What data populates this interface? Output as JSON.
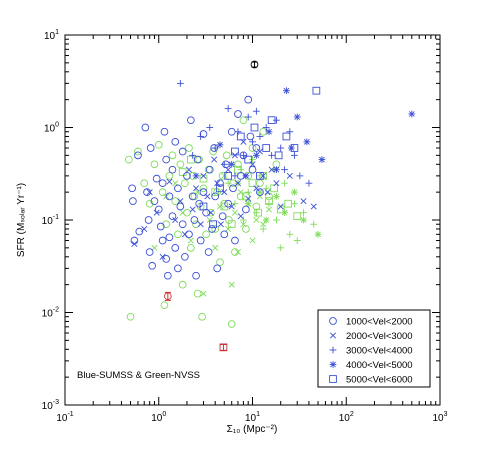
{
  "chart_data": {
    "type": "scatter",
    "xscale": "log",
    "yscale": "log",
    "xlim": [
      0.1,
      1000
    ],
    "ylim": [
      0.001,
      10
    ],
    "xlabel": "Σ₁₀ (Mpc⁻²)",
    "ylabel": "SFR (Mₛₒₗₐᵣ Yr⁻¹)",
    "xtick_labels": [
      {
        "value": 0.1,
        "base": "10",
        "exp": "-1"
      },
      {
        "value": 1,
        "base": "10",
        "exp": "0"
      },
      {
        "value": 10,
        "base": "10",
        "exp": "1"
      },
      {
        "value": 100,
        "base": "10",
        "exp": "2"
      },
      {
        "value": 1000,
        "base": "10",
        "exp": "3"
      }
    ],
    "ytick_labels": [
      {
        "value": 0.001,
        "base": "10",
        "exp": "-3"
      },
      {
        "value": 0.01,
        "base": "10",
        "exp": "-2"
      },
      {
        "value": 0.1,
        "base": "10",
        "exp": "-1"
      },
      {
        "value": 1,
        "base": "10",
        "exp": "0"
      },
      {
        "value": 10,
        "base": "10",
        "exp": "1"
      }
    ],
    "note": "Blue-SUMSS & Green-NVSS",
    "legend": {
      "position": "bottom-right",
      "entries": [
        {
          "marker": "circle",
          "label": "1000<Vel<2000"
        },
        {
          "marker": "x",
          "label": "2000<Vel<3000"
        },
        {
          "marker": "plus",
          "label": "3000<Vel<4000"
        },
        {
          "marker": "star",
          "label": "4000<Vel<5000"
        },
        {
          "marker": "square",
          "label": "5000<Vel<6000"
        }
      ]
    },
    "colors": {
      "SUMSS": "#3b4fd6",
      "NVSS": "#7fdc5a",
      "error_red": "#cc3333",
      "error_black": "#000000"
    },
    "series": [
      {
        "survey": "SUMSS",
        "marker": "circle",
        "points": [
          [
            0.52,
            0.22
          ],
          [
            0.53,
            0.16
          ],
          [
            0.55,
            0.06
          ],
          [
            0.6,
            0.5
          ],
          [
            0.62,
            0.075
          ],
          [
            0.72,
            1.0
          ],
          [
            0.75,
            0.2
          ],
          [
            0.78,
            0.1
          ],
          [
            0.8,
            0.045
          ],
          [
            0.82,
            0.6
          ],
          [
            0.85,
            0.032
          ],
          [
            0.9,
            0.16
          ],
          [
            0.95,
            0.28
          ],
          [
            1.0,
            0.13
          ],
          [
            1.05,
            0.085
          ],
          [
            1.1,
            0.06
          ],
          [
            1.1,
            0.25
          ],
          [
            1.15,
            0.9
          ],
          [
            1.2,
            0.45
          ],
          [
            1.2,
            0.038
          ],
          [
            1.25,
            0.025
          ],
          [
            1.3,
            0.065
          ],
          [
            1.3,
            0.18
          ],
          [
            1.4,
            0.11
          ],
          [
            1.4,
            0.35
          ],
          [
            1.5,
            0.7
          ],
          [
            1.5,
            0.05
          ],
          [
            1.6,
            0.22
          ],
          [
            1.6,
            0.03
          ],
          [
            1.7,
            0.14
          ],
          [
            1.8,
            0.09
          ],
          [
            1.8,
            0.55
          ],
          [
            1.9,
            0.04
          ],
          [
            2.0,
            0.3
          ],
          [
            2.1,
            0.07
          ],
          [
            2.2,
            1.2
          ],
          [
            2.3,
            0.18
          ],
          [
            2.4,
            0.1
          ],
          [
            2.5,
            0.025
          ],
          [
            2.6,
            0.45
          ],
          [
            2.7,
            0.15
          ],
          [
            2.8,
            0.06
          ],
          [
            3.0,
            0.85
          ],
          [
            3.0,
            0.2
          ],
          [
            3.2,
            0.12
          ],
          [
            3.4,
            0.045
          ],
          [
            3.5,
            0.35
          ],
          [
            3.7,
            0.08
          ],
          [
            3.9,
            0.6
          ],
          [
            4.0,
            0.18
          ],
          [
            4.2,
            0.03
          ],
          [
            4.5,
            0.25
          ],
          [
            4.8,
            0.11
          ],
          [
            5.0,
            0.07
          ],
          [
            5.2,
            0.4
          ],
          [
            5.5,
            0.15
          ],
          [
            6.0,
            0.9
          ],
          [
            6.2,
            0.22
          ],
          [
            6.5,
            0.06
          ],
          [
            7.0,
            1.4
          ],
          [
            7.5,
            0.3
          ],
          [
            8.0,
            0.5
          ],
          [
            8.5,
            0.13
          ],
          [
            9.0,
            2.0
          ],
          [
            9.5,
            0.8
          ],
          [
            10.0,
            0.35
          ],
          [
            11.0,
            0.6
          ],
          [
            12.0,
            0.2
          ]
        ]
      },
      {
        "survey": "NVSS",
        "marker": "circle",
        "points": [
          [
            0.48,
            0.45
          ],
          [
            0.5,
            0.009
          ],
          [
            0.6,
            0.55
          ],
          [
            0.7,
            0.25
          ],
          [
            0.8,
            0.15
          ],
          [
            0.9,
            0.4
          ],
          [
            1.0,
            0.65
          ],
          [
            1.1,
            0.2
          ],
          [
            1.15,
            0.012
          ],
          [
            1.2,
            0.09
          ],
          [
            1.3,
            0.3
          ],
          [
            1.4,
            0.5
          ],
          [
            1.5,
            0.16
          ],
          [
            1.6,
            0.07
          ],
          [
            1.7,
            0.4
          ],
          [
            1.8,
            0.02
          ],
          [
            1.9,
            0.25
          ],
          [
            2.0,
            0.12
          ],
          [
            2.1,
            0.6
          ],
          [
            2.2,
            0.05
          ],
          [
            2.3,
            0.3
          ],
          [
            2.4,
            0.18
          ],
          [
            2.5,
            0.09
          ],
          [
            2.6,
            0.016
          ],
          [
            2.7,
            0.45
          ],
          [
            2.8,
            0.14
          ],
          [
            2.9,
            0.009
          ],
          [
            3.0,
            0.22
          ],
          [
            3.2,
            0.07
          ],
          [
            3.4,
            0.35
          ],
          [
            3.6,
            0.12
          ],
          [
            3.8,
            0.55
          ],
          [
            4.0,
            0.08
          ],
          [
            4.2,
            0.2
          ],
          [
            4.5,
            0.035
          ],
          [
            4.8,
            0.3
          ],
          [
            5.0,
            0.15
          ],
          [
            5.3,
            0.5
          ],
          [
            5.6,
            0.1
          ],
          [
            6.0,
            0.0075
          ],
          [
            6.2,
            0.25
          ],
          [
            6.5,
            0.045
          ],
          [
            7.0,
            0.4
          ],
          [
            7.5,
            0.18
          ],
          [
            8.0,
            1.2
          ],
          [
            8.5,
            0.08
          ],
          [
            9.0,
            0.3
          ],
          [
            10.0,
            0.6
          ],
          [
            11.0,
            0.14
          ],
          [
            12.0,
            0.25
          ],
          [
            13.0,
            0.9
          ],
          [
            15.0,
            0.18
          ],
          [
            18.0,
            0.4
          ]
        ]
      },
      {
        "survey": "SUMSS",
        "marker": "x",
        "points": [
          [
            0.55,
            0.055
          ],
          [
            0.7,
            0.08
          ],
          [
            0.8,
            0.2
          ],
          [
            0.95,
            0.12
          ],
          [
            1.1,
            0.04
          ],
          [
            1.3,
            0.26
          ],
          [
            1.5,
            0.1
          ],
          [
            1.7,
            0.16
          ],
          [
            1.9,
            0.07
          ],
          [
            2.1,
            0.35
          ],
          [
            2.3,
            0.13
          ],
          [
            2.5,
            0.22
          ],
          [
            2.8,
            0.09
          ],
          [
            3.0,
            0.3
          ],
          [
            3.3,
            0.18
          ],
          [
            3.6,
            0.12
          ],
          [
            3.9,
            0.45
          ],
          [
            4.2,
            0.25
          ],
          [
            4.6,
            0.09
          ],
          [
            5.0,
            0.2
          ],
          [
            5.5,
            0.35
          ],
          [
            6.0,
            0.14
          ],
          [
            6.5,
            0.5
          ],
          [
            7.0,
            0.25
          ],
          [
            7.5,
            0.11
          ],
          [
            8.0,
            0.7
          ],
          [
            8.5,
            0.3
          ],
          [
            9.0,
            0.17
          ],
          [
            10.0,
            0.4
          ],
          [
            11.0,
            0.22
          ],
          [
            12.0,
            0.55
          ],
          [
            13.0,
            0.3
          ],
          [
            14.5,
            0.2
          ],
          [
            16.0,
            0.35
          ],
          [
            18.0,
            0.25
          ],
          [
            20.0,
            0.14
          ],
          [
            25.0,
            0.3
          ],
          [
            35.0,
            0.16
          ],
          [
            45.0,
            0.14
          ]
        ]
      },
      {
        "survey": "NVSS",
        "marker": "x",
        "points": [
          [
            0.9,
            0.05
          ],
          [
            1.2,
            0.18
          ],
          [
            1.5,
            0.25
          ],
          [
            1.8,
            0.12
          ],
          [
            2.2,
            0.06
          ],
          [
            2.6,
            0.2
          ],
          [
            3.0,
            0.016
          ],
          [
            3.5,
            0.1
          ],
          [
            4.0,
            0.05
          ],
          [
            4.5,
            0.14
          ],
          [
            5.0,
            0.3
          ],
          [
            5.5,
            0.08
          ],
          [
            6.0,
            0.02
          ],
          [
            6.5,
            0.12
          ],
          [
            7.0,
            0.045
          ],
          [
            7.5,
            0.2
          ],
          [
            8.0,
            0.09
          ],
          [
            9.0,
            0.15
          ],
          [
            10.0,
            0.06
          ],
          [
            11.0,
            0.1
          ],
          [
            12.0,
            0.18
          ],
          [
            13.0,
            0.09
          ],
          [
            15.0,
            0.13
          ]
        ]
      },
      {
        "survey": "SUMSS",
        "marker": "plus",
        "points": [
          [
            1.7,
            3.0
          ],
          [
            2.3,
            0.5
          ],
          [
            2.8,
            0.8
          ],
          [
            3.5,
            1.0
          ],
          [
            4.0,
            0.6
          ],
          [
            5.0,
            0.4
          ],
          [
            5.5,
            1.6
          ],
          [
            6.5,
            0.3
          ],
          [
            7.0,
            0.9
          ],
          [
            8.0,
            0.5
          ],
          [
            9.0,
            1.3
          ],
          [
            10.0,
            0.7
          ],
          [
            11.0,
            1.5
          ],
          [
            12.0,
            0.8
          ],
          [
            14.0,
            1.0
          ],
          [
            16.0,
            0.5
          ],
          [
            18.0,
            1.2
          ],
          [
            20.0,
            0.6
          ],
          [
            22.0,
            0.35
          ],
          [
            25.0,
            0.9
          ],
          [
            28.0,
            0.5
          ],
          [
            32.0,
            0.3
          ],
          [
            40.0,
            0.25
          ]
        ]
      },
      {
        "survey": "NVSS",
        "marker": "plus",
        "points": [
          [
            5.5,
            0.25
          ],
          [
            6.5,
            0.15
          ],
          [
            7.5,
            0.35
          ],
          [
            8.0,
            0.1
          ],
          [
            9.0,
            0.2
          ],
          [
            10.0,
            0.45
          ],
          [
            11.0,
            0.12
          ],
          [
            12.0,
            0.3
          ],
          [
            13.0,
            0.08
          ],
          [
            14.0,
            0.22
          ],
          [
            15.0,
            0.15
          ],
          [
            17.0,
            0.35
          ],
          [
            18.0,
            0.1
          ],
          [
            20.0,
            0.05
          ],
          [
            22.0,
            0.25
          ],
          [
            25.0,
            0.07
          ],
          [
            28.0,
            0.15
          ],
          [
            30.0,
            0.06
          ],
          [
            35.0,
            0.12
          ],
          [
            45.0,
            0.09
          ]
        ]
      },
      {
        "survey": "SUMSS",
        "marker": "star",
        "points": [
          [
            2.5,
            0.3
          ],
          [
            4.5,
            0.65
          ],
          [
            6.0,
            0.4
          ],
          [
            8.5,
            0.3
          ],
          [
            11.0,
            0.5
          ],
          [
            15.0,
            0.9
          ],
          [
            18.0,
            0.35
          ],
          [
            23.0,
            2.5
          ],
          [
            26.0,
            0.6
          ],
          [
            30.0,
            1.3
          ],
          [
            38.0,
            0.7
          ],
          [
            55.0,
            0.45
          ],
          [
            500.0,
            1.4
          ]
        ]
      },
      {
        "survey": "NVSS",
        "marker": "star",
        "points": [
          [
            7.0,
            0.25
          ],
          [
            9.0,
            0.15
          ],
          [
            12.0,
            0.2
          ],
          [
            14.0,
            0.1
          ],
          [
            18.0,
            0.18
          ],
          [
            22.0,
            0.12
          ],
          [
            28.0,
            0.2
          ],
          [
            35.0,
            0.1
          ],
          [
            50.0,
            0.07
          ]
        ]
      },
      {
        "survey": "SUMSS",
        "marker": "square",
        "points": [
          [
            3.0,
            0.14
          ],
          [
            3.8,
            0.09
          ],
          [
            4.5,
            0.22
          ],
          [
            5.5,
            0.3
          ],
          [
            6.5,
            0.55
          ],
          [
            7.5,
            0.8
          ],
          [
            9.0,
            0.45
          ],
          [
            10.5,
            1.0
          ],
          [
            12.0,
            0.3
          ],
          [
            14.0,
            0.6
          ],
          [
            16.0,
            1.2
          ],
          [
            19.0,
            0.5
          ],
          [
            23.0,
            0.8
          ],
          [
            28.0,
            0.6
          ],
          [
            48.0,
            2.5
          ]
        ]
      },
      {
        "survey": "NVSS",
        "marker": "square",
        "points": [
          [
            1.8,
            0.33
          ],
          [
            2.2,
            0.45
          ],
          [
            3.0,
            0.28
          ],
          [
            4.0,
            0.2
          ],
          [
            5.0,
            0.14
          ],
          [
            6.0,
            0.09
          ],
          [
            7.0,
            0.35
          ],
          [
            8.5,
            0.18
          ],
          [
            10.0,
            0.25
          ],
          [
            11.5,
            0.12
          ],
          [
            13.0,
            0.3
          ],
          [
            15.0,
            0.16
          ],
          [
            17.0,
            0.22
          ],
          [
            20.0,
            0.13
          ],
          [
            24.0,
            0.15
          ],
          [
            30.0,
            0.11
          ]
        ]
      }
    ],
    "error_points": [
      {
        "x": 1.25,
        "y": 0.015,
        "yerr_low": 0.0135,
        "yerr_high": 0.0165,
        "color": "error_red",
        "marker": "circle"
      },
      {
        "x": 4.9,
        "y": 0.0042,
        "yerr_low": 0.0039,
        "yerr_high": 0.0045,
        "color": "error_red",
        "marker": "square"
      },
      {
        "x": 10.5,
        "y": 4.8,
        "yerr_low": 4.5,
        "yerr_high": 5.1,
        "color": "error_black",
        "marker": "circle"
      }
    ]
  }
}
